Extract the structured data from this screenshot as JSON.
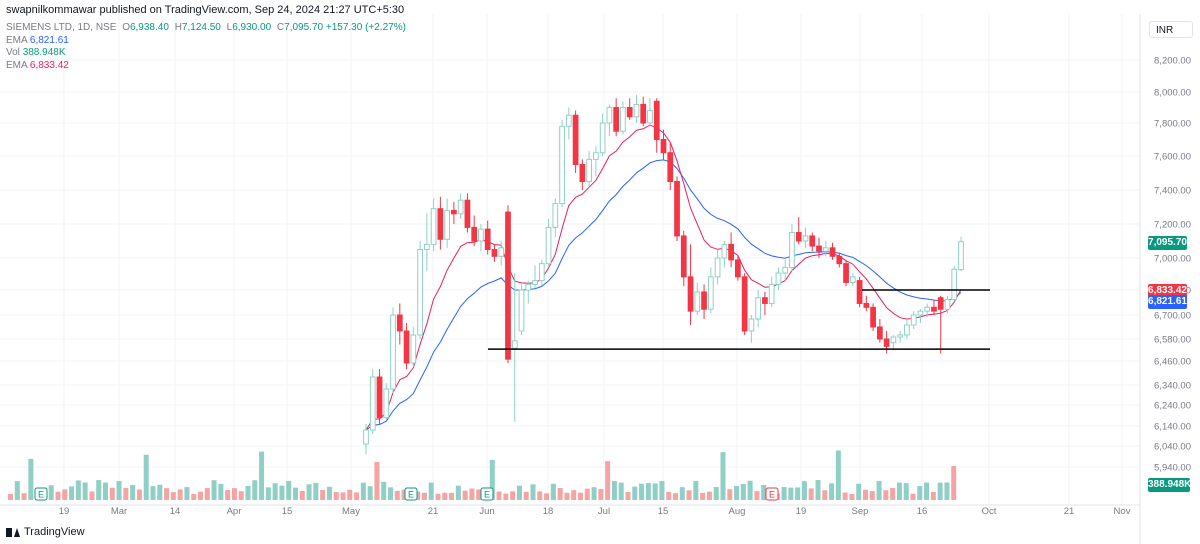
{
  "header": {
    "published": "swapnilkommawar published on TradingView.com, Sep 24, 2024 21:27 UTC+5:30",
    "symbol": "SIEMENS LTD, 1D, NSE",
    "o_label": "O",
    "o": "6,938.40",
    "h_label": "H",
    "h": "7,124.50",
    "l_label": "L",
    "l": "6,930.00",
    "c_label": "C",
    "c": "7,095.70",
    "change": "+157.30 (+2.27%)",
    "ema1_label": "EMA",
    "ema1": "6,821.61",
    "vol_label": "Vol",
    "vol": "388.948K",
    "ema2_label": "EMA",
    "ema2": "6,833.42"
  },
  "currency": "INR",
  "brand": "TradingView",
  "colors": {
    "up": "#089981",
    "up_light": "#8fd1c5",
    "down": "#f23645",
    "down_light": "#f7a9a7",
    "ema_fast": "#e91e63",
    "ema_slow": "#2962ff",
    "vol_up": "#8fcfc6",
    "vol_down": "#f4a5a3",
    "grid": "#f0f3fa",
    "axis_text": "#787b86"
  },
  "badges": {
    "last": "7,095.70",
    "ema2": "6,833.42",
    "ema1": "6,821.61",
    "vol": "388.948K"
  },
  "chart_data": {
    "type": "candlestick",
    "y_axis_ticks": [
      "8,200.00",
      "8,000.00",
      "7,800.00",
      "7,600.00",
      "7,400.00",
      "7,200.00",
      "7,000.00",
      "6,830.00",
      "6,700.00",
      "6,580.00",
      "6,460.00",
      "6,340.00",
      "6,240.00",
      "6,140.00",
      "6,040.00",
      "5,940.00"
    ],
    "x_axis_ticks": [
      "19",
      "Mar",
      "14",
      "Apr",
      "15",
      "May",
      "21",
      "Jun",
      "18",
      "Jul",
      "15",
      "Aug",
      "19",
      "Sep",
      "16",
      "Oct",
      "21",
      "Nov"
    ],
    "earnings_markers": [
      "E",
      "E",
      "E",
      "E"
    ],
    "horizontal_lines": [
      6830,
      6525
    ],
    "candles": [
      {
        "d": "2024-05-20",
        "o": 6050,
        "h": 6150,
        "l": 6000,
        "c": 6120
      },
      {
        "d": "2024-05-21",
        "o": 6120,
        "h": 6420,
        "l": 6100,
        "c": 6380
      },
      {
        "d": "2024-05-22",
        "o": 6380,
        "h": 6420,
        "l": 6150,
        "c": 6180
      },
      {
        "d": "2024-05-23",
        "o": 6180,
        "h": 6350,
        "l": 6170,
        "c": 6320
      },
      {
        "d": "2024-05-24",
        "o": 6320,
        "h": 6740,
        "l": 6300,
        "c": 6700
      },
      {
        "d": "2024-05-27",
        "o": 6700,
        "h": 6760,
        "l": 6550,
        "c": 6620
      },
      {
        "d": "2024-05-28",
        "o": 6620,
        "h": 6660,
        "l": 6420,
        "c": 6450
      },
      {
        "d": "2024-05-29",
        "o": 6450,
        "h": 6640,
        "l": 6430,
        "c": 6600
      },
      {
        "d": "2024-05-30",
        "o": 6600,
        "h": 7100,
        "l": 6580,
        "c": 7050
      },
      {
        "d": "2024-05-31",
        "o": 7050,
        "h": 7260,
        "l": 6930,
        "c": 7080
      },
      {
        "d": "2024-06-03",
        "o": 7080,
        "h": 7350,
        "l": 7040,
        "c": 7290
      },
      {
        "d": "2024-06-04",
        "o": 7290,
        "h": 7360,
        "l": 7050,
        "c": 7110
      },
      {
        "d": "2024-06-05",
        "o": 7110,
        "h": 7350,
        "l": 7060,
        "c": 7280
      },
      {
        "d": "2024-06-06",
        "o": 7280,
        "h": 7330,
        "l": 7200,
        "c": 7260
      },
      {
        "d": "2024-06-07",
        "o": 7260,
        "h": 7380,
        "l": 7230,
        "c": 7340
      },
      {
        "d": "2024-06-10",
        "o": 7340,
        "h": 7380,
        "l": 7150,
        "c": 7180
      },
      {
        "d": "2024-06-11",
        "o": 7180,
        "h": 7250,
        "l": 7070,
        "c": 7100
      },
      {
        "d": "2024-06-12",
        "o": 7100,
        "h": 7200,
        "l": 7040,
        "c": 7170
      },
      {
        "d": "2024-06-13",
        "o": 7170,
        "h": 7220,
        "l": 7020,
        "c": 7050
      },
      {
        "d": "2024-06-14",
        "o": 7050,
        "h": 7080,
        "l": 6980,
        "c": 7010
      },
      {
        "d": "2024-06-17",
        "o": 7010,
        "h": 7100,
        "l": 6960,
        "c": 7060
      },
      {
        "d": "2024-06-18",
        "o": 7270,
        "h": 7310,
        "l": 6450,
        "c": 6470
      },
      {
        "d": "2024-06-19",
        "o": 6530,
        "h": 6920,
        "l": 6160,
        "c": 6570
      },
      {
        "d": "2024-06-20",
        "o": 6620,
        "h": 6860,
        "l": 6600,
        "c": 6830
      },
      {
        "d": "2024-06-21",
        "o": 6830,
        "h": 6880,
        "l": 6760,
        "c": 6860
      },
      {
        "d": "2024-06-24",
        "o": 6860,
        "h": 6960,
        "l": 6840,
        "c": 6880
      },
      {
        "d": "2024-06-25",
        "o": 6880,
        "h": 6990,
        "l": 6850,
        "c": 6970
      },
      {
        "d": "2024-06-26",
        "o": 6970,
        "h": 7230,
        "l": 6960,
        "c": 7180
      },
      {
        "d": "2024-06-27",
        "o": 7180,
        "h": 7350,
        "l": 7120,
        "c": 7320
      },
      {
        "d": "2024-06-28",
        "o": 7320,
        "h": 7820,
        "l": 7300,
        "c": 7780
      },
      {
        "d": "2024-07-01",
        "o": 7780,
        "h": 7900,
        "l": 7700,
        "c": 7850
      },
      {
        "d": "2024-07-02",
        "o": 7850,
        "h": 7880,
        "l": 7500,
        "c": 7550
      },
      {
        "d": "2024-07-03",
        "o": 7550,
        "h": 7580,
        "l": 7400,
        "c": 7450
      },
      {
        "d": "2024-07-04",
        "o": 7450,
        "h": 7630,
        "l": 7420,
        "c": 7580
      },
      {
        "d": "2024-07-05",
        "o": 7580,
        "h": 7660,
        "l": 7480,
        "c": 7620
      },
      {
        "d": "2024-07-08",
        "o": 7620,
        "h": 7860,
        "l": 7600,
        "c": 7800
      },
      {
        "d": "2024-07-09",
        "o": 7800,
        "h": 7920,
        "l": 7720,
        "c": 7900
      },
      {
        "d": "2024-07-10",
        "o": 7900,
        "h": 7960,
        "l": 7720,
        "c": 7750
      },
      {
        "d": "2024-07-11",
        "o": 7750,
        "h": 7940,
        "l": 7730,
        "c": 7900
      },
      {
        "d": "2024-07-12",
        "o": 7900,
        "h": 7960,
        "l": 7820,
        "c": 7840
      },
      {
        "d": "2024-07-15",
        "o": 7840,
        "h": 7980,
        "l": 7800,
        "c": 7920
      },
      {
        "d": "2024-07-16",
        "o": 7920,
        "h": 7970,
        "l": 7780,
        "c": 7800
      },
      {
        "d": "2024-07-18",
        "o": 7800,
        "h": 7960,
        "l": 7780,
        "c": 7880
      },
      {
        "d": "2024-07-19",
        "o": 7940,
        "h": 7960,
        "l": 7620,
        "c": 7700
      },
      {
        "d": "2024-07-22",
        "o": 7700,
        "h": 7760,
        "l": 7580,
        "c": 7620
      },
      {
        "d": "2024-07-23",
        "o": 7620,
        "h": 7680,
        "l": 7400,
        "c": 7450
      },
      {
        "d": "2024-07-24",
        "o": 7450,
        "h": 7480,
        "l": 7100,
        "c": 7130
      },
      {
        "d": "2024-07-25",
        "o": 7130,
        "h": 7160,
        "l": 6850,
        "c": 6900
      },
      {
        "d": "2024-07-26",
        "o": 6900,
        "h": 7080,
        "l": 6650,
        "c": 6720
      },
      {
        "d": "2024-07-29",
        "o": 6720,
        "h": 6870,
        "l": 6700,
        "c": 6820
      },
      {
        "d": "2024-07-30",
        "o": 6820,
        "h": 6860,
        "l": 6680,
        "c": 6730
      },
      {
        "d": "2024-07-31",
        "o": 6730,
        "h": 6950,
        "l": 6710,
        "c": 6900
      },
      {
        "d": "2024-08-01",
        "o": 6900,
        "h": 7050,
        "l": 6860,
        "c": 7000
      },
      {
        "d": "2024-08-02",
        "o": 7000,
        "h": 7100,
        "l": 6950,
        "c": 7080
      },
      {
        "d": "2024-08-05",
        "o": 7080,
        "h": 7150,
        "l": 6950,
        "c": 6990
      },
      {
        "d": "2024-08-06",
        "o": 6990,
        "h": 7010,
        "l": 6880,
        "c": 6900
      },
      {
        "d": "2024-08-07",
        "o": 6900,
        "h": 6920,
        "l": 6600,
        "c": 6620
      },
      {
        "d": "2024-08-08",
        "o": 6620,
        "h": 6700,
        "l": 6560,
        "c": 6680
      },
      {
        "d": "2024-08-09",
        "o": 6680,
        "h": 6830,
        "l": 6640,
        "c": 6790
      },
      {
        "d": "2024-08-12",
        "o": 6790,
        "h": 6820,
        "l": 6700,
        "c": 6760
      },
      {
        "d": "2024-08-13",
        "o": 6760,
        "h": 6900,
        "l": 6740,
        "c": 6860
      },
      {
        "d": "2024-08-14",
        "o": 6860,
        "h": 6950,
        "l": 6830,
        "c": 6920
      },
      {
        "d": "2024-08-16",
        "o": 6920,
        "h": 6990,
        "l": 6880,
        "c": 6950
      },
      {
        "d": "2024-08-19",
        "o": 6950,
        "h": 7200,
        "l": 6930,
        "c": 7150
      },
      {
        "d": "2024-08-20",
        "o": 7150,
        "h": 7240,
        "l": 7080,
        "c": 7100
      },
      {
        "d": "2024-08-21",
        "o": 7100,
        "h": 7180,
        "l": 7060,
        "c": 7130
      },
      {
        "d": "2024-08-22",
        "o": 7130,
        "h": 7150,
        "l": 7040,
        "c": 7070
      },
      {
        "d": "2024-08-23",
        "o": 7070,
        "h": 7120,
        "l": 7000,
        "c": 7040
      },
      {
        "d": "2024-08-26",
        "o": 7040,
        "h": 7100,
        "l": 7010,
        "c": 7060
      },
      {
        "d": "2024-08-27",
        "o": 7060,
        "h": 7090,
        "l": 6990,
        "c": 7010
      },
      {
        "d": "2024-08-28",
        "o": 7010,
        "h": 7030,
        "l": 6950,
        "c": 6970
      },
      {
        "d": "2024-08-29",
        "o": 6970,
        "h": 6990,
        "l": 6850,
        "c": 6870
      },
      {
        "d": "2024-08-30",
        "o": 6870,
        "h": 6920,
        "l": 6850,
        "c": 6900
      },
      {
        "d": "2024-09-02",
        "o": 6880,
        "h": 6900,
        "l": 6740,
        "c": 6760
      },
      {
        "d": "2024-09-03",
        "o": 6760,
        "h": 6800,
        "l": 6720,
        "c": 6740
      },
      {
        "d": "2024-09-04",
        "o": 6740,
        "h": 6760,
        "l": 6620,
        "c": 6640
      },
      {
        "d": "2024-09-05",
        "o": 6640,
        "h": 6680,
        "l": 6560,
        "c": 6580
      },
      {
        "d": "2024-09-06",
        "o": 6580,
        "h": 6620,
        "l": 6500,
        "c": 6540
      },
      {
        "d": "2024-09-09",
        "o": 6560,
        "h": 6600,
        "l": 6520,
        "c": 6590
      },
      {
        "d": "2024-09-10",
        "o": 6590,
        "h": 6620,
        "l": 6560,
        "c": 6600
      },
      {
        "d": "2024-09-11",
        "o": 6600,
        "h": 6680,
        "l": 6580,
        "c": 6650
      },
      {
        "d": "2024-09-12",
        "o": 6650,
        "h": 6720,
        "l": 6630,
        "c": 6700
      },
      {
        "d": "2024-09-13",
        "o": 6700,
        "h": 6730,
        "l": 6660,
        "c": 6720
      },
      {
        "d": "2024-09-16",
        "o": 6720,
        "h": 6760,
        "l": 6690,
        "c": 6740
      },
      {
        "d": "2024-09-17",
        "o": 6740,
        "h": 6780,
        "l": 6700,
        "c": 6720
      },
      {
        "d": "2024-09-18",
        "o": 6790,
        "h": 6800,
        "l": 6500,
        "c": 6730
      },
      {
        "d": "2024-09-19",
        "o": 6730,
        "h": 6800,
        "l": 6710,
        "c": 6780
      },
      {
        "d": "2024-09-20",
        "o": 6780,
        "h": 6960,
        "l": 6770,
        "c": 6940
      },
      {
        "d": "2024-09-23",
        "o": 6938,
        "h": 7125,
        "l": 6930,
        "c": 7096
      }
    ]
  }
}
